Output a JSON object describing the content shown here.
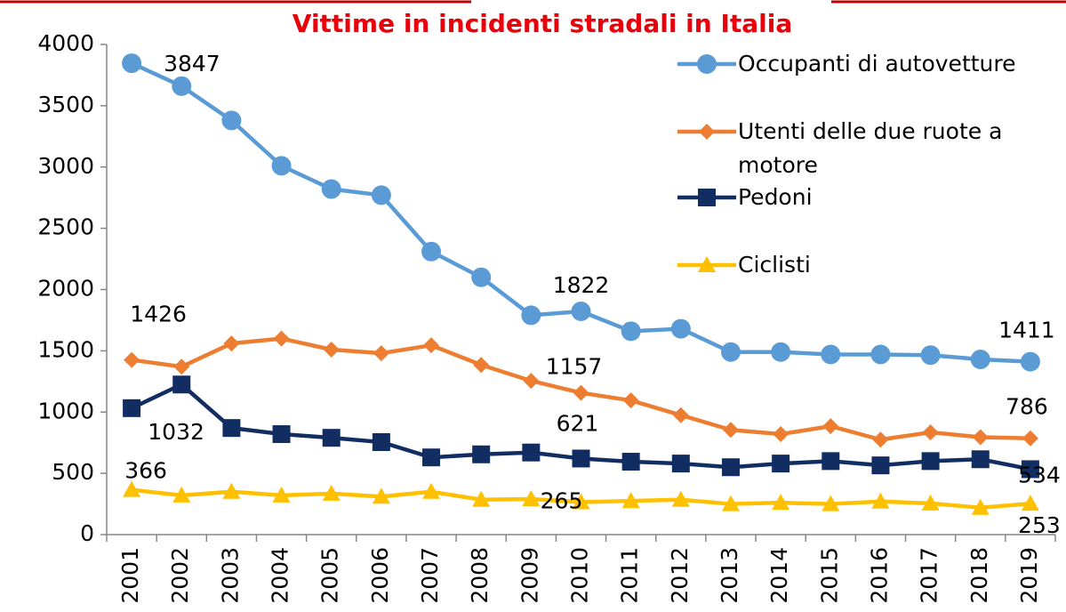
{
  "chart_data": {
    "type": "line",
    "title": "Vittime in incidenti stradali in Italia",
    "categories": [
      "2001",
      "2002",
      "2003",
      "2004",
      "2005",
      "2006",
      "2007",
      "2008",
      "2009",
      "2010",
      "2011",
      "2012",
      "2013",
      "2014",
      "2015",
      "2016",
      "2017",
      "2018",
      "2019"
    ],
    "series": [
      {
        "name": "Occupanti di autovetture",
        "color": "#5b9bd5",
        "marker": "circle",
        "values": [
          3847,
          3660,
          3380,
          3010,
          2820,
          2770,
          2310,
          2100,
          1790,
          1822,
          1660,
          1680,
          1490,
          1490,
          1470,
          1470,
          1465,
          1430,
          1411
        ]
      },
      {
        "name": "Utenti delle due ruote a motore",
        "color": "#ed7d31",
        "marker": "diamond",
        "values": [
          1426,
          1370,
          1560,
          1600,
          1510,
          1480,
          1545,
          1385,
          1255,
          1157,
          1095,
          975,
          855,
          820,
          885,
          775,
          835,
          795,
          786
        ]
      },
      {
        "name": "Pedoni",
        "color": "#112d62",
        "marker": "square",
        "values": [
          1032,
          1225,
          870,
          820,
          790,
          755,
          630,
          655,
          670,
          621,
          595,
          580,
          550,
          580,
          600,
          565,
          600,
          615,
          534
        ]
      },
      {
        "name": "Ciclisti",
        "color": "#ffc000",
        "marker": "triangle",
        "values": [
          366,
          320,
          350,
          320,
          335,
          310,
          350,
          285,
          290,
          265,
          275,
          285,
          250,
          260,
          250,
          270,
          255,
          220,
          253
        ]
      }
    ],
    "ylim": [
      0,
      4000
    ],
    "yticks": [
      0,
      500,
      1000,
      1500,
      2000,
      2500,
      3000,
      3500,
      4000
    ],
    "grid": false,
    "legend": "right"
  }
}
